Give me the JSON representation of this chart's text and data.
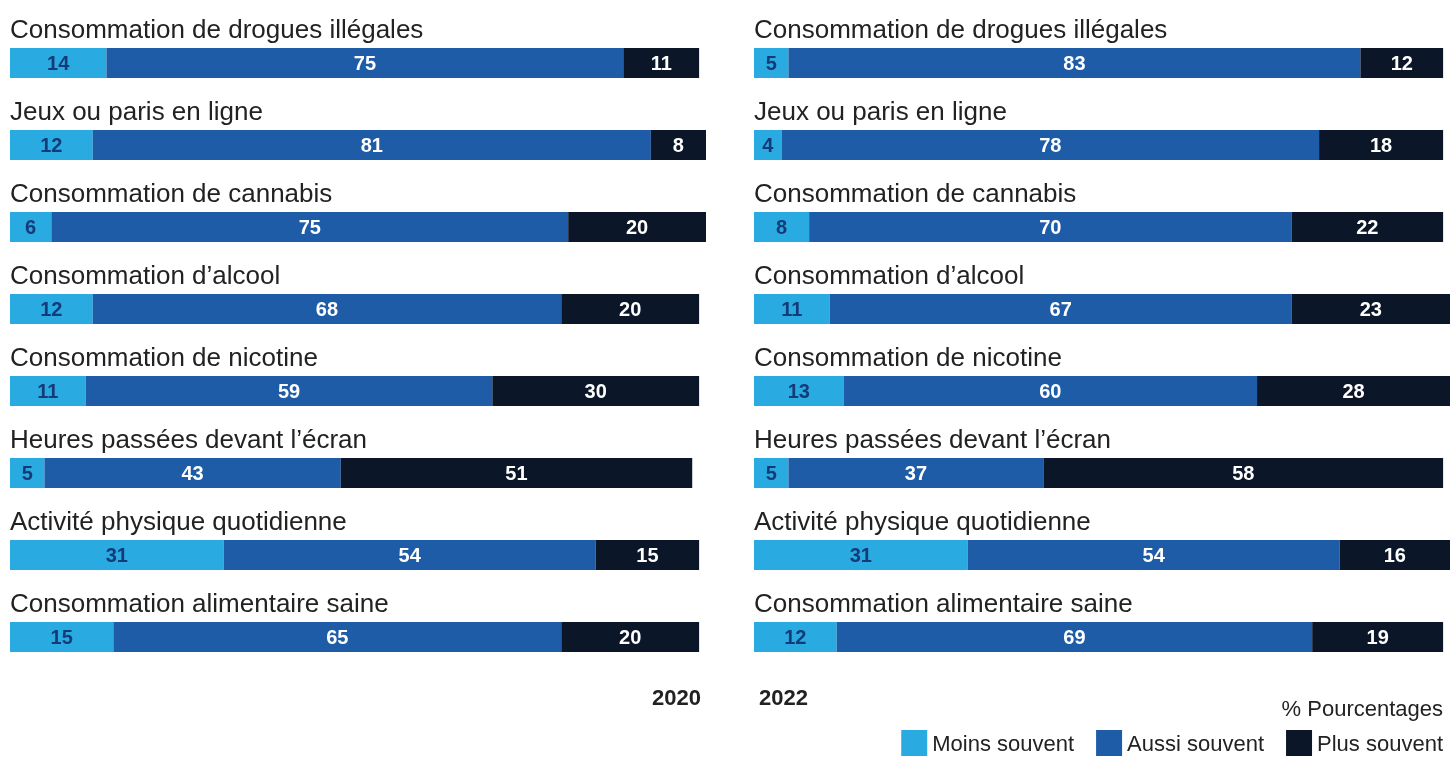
{
  "chart_data": [
    {
      "type": "bar",
      "orientation": "horizontal",
      "stacked": true,
      "title": "2020",
      "data_labels": true,
      "xlim": [
        0,
        101
      ],
      "categories": [
        "Consommation de drogues illégales",
        "Jeux ou paris en ligne",
        "Consommation de cannabis",
        "Consommation d’alcool",
        "Consommation de nicotine",
        "Heures passées devant l’écran",
        "Activité physique quotidienne",
        "Consommation alimentaire saine"
      ],
      "series": [
        {
          "color": "#29abe2",
          "values": [
            14,
            12,
            6,
            12,
            11,
            5,
            31,
            15
          ]
        },
        {
          "color": "#1f5ca8",
          "values": [
            75,
            81,
            75,
            68,
            59,
            43,
            54,
            65
          ]
        },
        {
          "color": "#0b1628",
          "values": [
            11,
            8,
            20,
            20,
            30,
            51,
            15,
            20
          ]
        }
      ]
    },
    {
      "type": "bar",
      "orientation": "horizontal",
      "stacked": true,
      "title": "2022",
      "data_labels": true,
      "xlim": [
        0,
        101
      ],
      "legend": "bottom right",
      "legend_title": "% Pourcentages",
      "categories": [
        "Consommation de drogues illégales",
        "Jeux ou paris en ligne",
        "Consommation de cannabis",
        "Consommation d’alcool",
        "Consommation de nicotine",
        "Heures passées devant l’écran",
        "Activité physique quotidienne",
        "Consommation alimentaire saine"
      ],
      "series": [
        {
          "name": "Moins souvent",
          "color": "#29abe2",
          "values": [
            5,
            4,
            8,
            11,
            13,
            5,
            31,
            12
          ]
        },
        {
          "name": "Aussi souvent",
          "color": "#1f5ca8",
          "values": [
            83,
            78,
            70,
            67,
            60,
            37,
            54,
            69
          ]
        },
        {
          "name": "Plus souvent",
          "color": "#0b1628",
          "values": [
            12,
            18,
            22,
            23,
            28,
            58,
            16,
            19
          ]
        }
      ]
    }
  ]
}
